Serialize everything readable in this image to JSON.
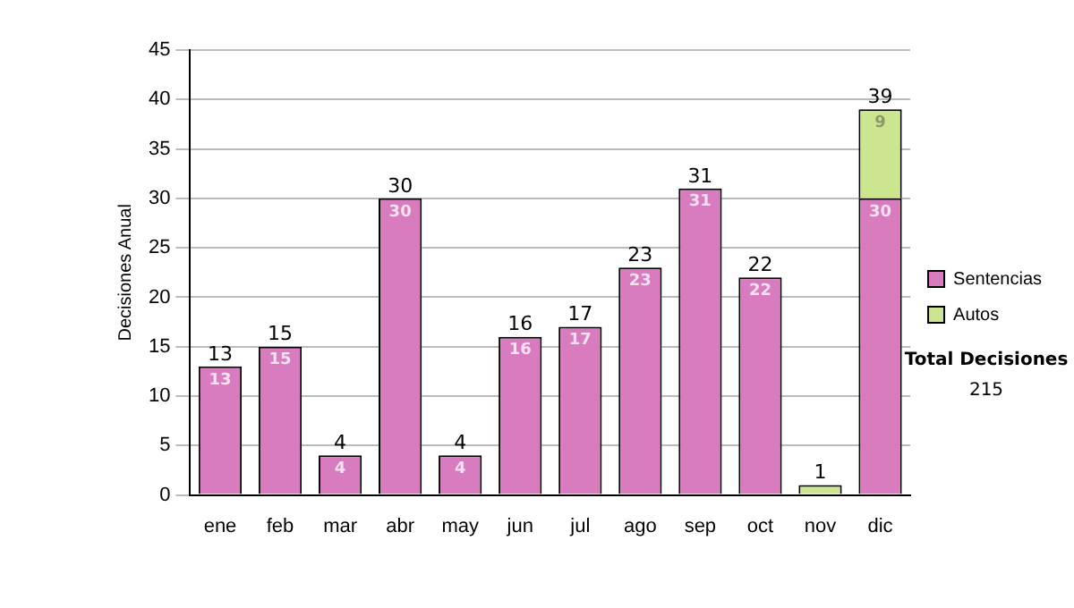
{
  "chart_data": {
    "type": "bar",
    "stacked": true,
    "ylabel": "Decisiones Anual",
    "categories": [
      "ene",
      "feb",
      "mar",
      "abr",
      "may",
      "jun",
      "jul",
      "ago",
      "sep",
      "oct",
      "nov",
      "dic"
    ],
    "series": [
      {
        "name": "Sentencias",
        "color": "#d97bbf",
        "values": [
          13,
          15,
          4,
          30,
          4,
          16,
          17,
          23,
          31,
          22,
          null,
          30
        ],
        "value_labels": [
          "13",
          "15",
          "4",
          "30",
          "4",
          "16",
          "17",
          "23",
          "31",
          "22",
          null,
          "30"
        ]
      },
      {
        "name": "Autos",
        "color": "#cce68f",
        "values": [
          null,
          null,
          null,
          null,
          null,
          null,
          null,
          null,
          null,
          null,
          1,
          9
        ],
        "value_labels": [
          null,
          null,
          null,
          null,
          null,
          null,
          null,
          null,
          null,
          null,
          null,
          "9"
        ]
      }
    ],
    "totals": [
      "13",
      "15",
      "4",
      "30",
      "4",
      "16",
      "17",
      "23",
      "31",
      "22",
      "1",
      "39"
    ],
    "ylim": [
      0,
      45
    ],
    "yticks": [
      0,
      5,
      10,
      15,
      20,
      25,
      30,
      35,
      40,
      45
    ],
    "grid": "y",
    "legend": "right",
    "annotations": [
      "Total Decisiones",
      "215"
    ]
  }
}
